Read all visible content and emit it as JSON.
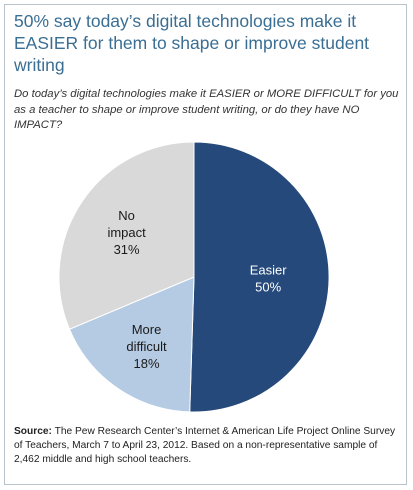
{
  "title": "50% say today’s digital technologies make it EASIER for them to shape or improve student writing",
  "question": "Do today’s digital technologies make it EASIER or MORE DIFFICULT for you as a teacher to shape or improve student writing, or do they have NO IMPACT?",
  "source": {
    "label": "Source:",
    "text": "The Pew Research Center’s Internet & American Life Project Online Survey of Teachers, March 7 to April 23, 2012.  Based on a non-representative sample of 2,462 middle and high school teachers."
  },
  "colors": {
    "easier": "#24497a",
    "more_difficult": "#b5cbe3",
    "no_impact": "#d9d9d9",
    "title": "#3a6e93"
  },
  "chart_data": {
    "type": "pie",
    "slices": [
      {
        "label": "Easier",
        "value": 50,
        "display": "50%",
        "color": "#24497a",
        "text_color": "#ffffff"
      },
      {
        "label": "More difficult",
        "value": 18,
        "display": "18%",
        "color": "#b5cbe3",
        "text_color": "#1a1a1a"
      },
      {
        "label": "No impact",
        "value": 31,
        "display": "31%",
        "color": "#d9d9d9",
        "text_color": "#1a1a1a"
      }
    ]
  }
}
